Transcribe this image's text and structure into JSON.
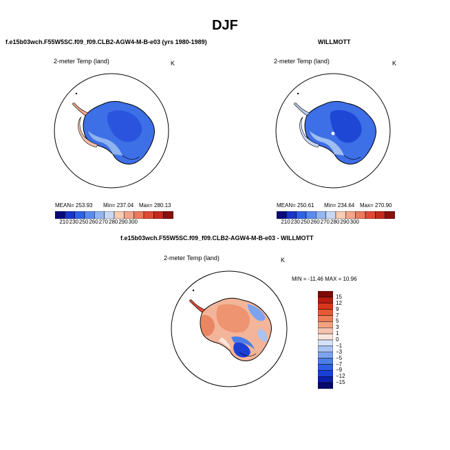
{
  "title": "DJF",
  "panels": [
    {
      "heading": "f.e15b03wch.F55W5SC.f09_f09.CLB2-AGW4-M-B-e03 (yrs 1980-1989)",
      "variable": "2-meter Temp (land)",
      "units": "K",
      "stats": {
        "mean": "MEAN= 253.93",
        "min": "Min= 237.04",
        "max": "Max= 280.13"
      },
      "colorbar_ticks": [
        "210",
        "230",
        "250",
        "260",
        "270",
        "280",
        "290",
        "300"
      ]
    },
    {
      "heading": "WILLMOTT",
      "variable": "2-meter Temp (land)",
      "units": "K",
      "stats": {
        "mean": "MEAN= 250.61",
        "min": "Min= 234.64",
        "max": "Max= 270.90"
      },
      "colorbar_ticks": [
        "210",
        "230",
        "250",
        "260",
        "270",
        "280",
        "290",
        "300"
      ]
    },
    {
      "heading": "f.e15b03wch.F55W5SC.f09_f09.CLB2-AGW4-M-B-e03 - WILLMOTT",
      "variable": "2-meter Temp (land)",
      "units": "K",
      "stats_line": "MIN = -11.46  MAX =  10.96",
      "colorbar_ticks": [
        "15",
        "12",
        "9",
        "7",
        "5",
        "3",
        "1",
        "0",
        "−1",
        "−3",
        "−5",
        "−7",
        "−9",
        "−12",
        "−15"
      ]
    }
  ],
  "chart_data": [
    {
      "type": "heatmap",
      "title": "2-meter Temp (land)",
      "units": "K",
      "projection": "south polar stereographic",
      "mean": 253.93,
      "min": 237.04,
      "max": 280.13,
      "colorbar_levels": [
        210,
        230,
        250,
        260,
        270,
        280,
        290,
        300
      ],
      "colorbar_colors": [
        "#0a0a78",
        "#1b35c8",
        "#2f63e6",
        "#5a8cf0",
        "#93b6f2",
        "#c8d8f4",
        "#f6ccb3",
        "#f3a48a",
        "#ec7a5d",
        "#e04a35",
        "#c42a1e",
        "#8a1010"
      ]
    },
    {
      "type": "heatmap",
      "title": "2-meter Temp (land)",
      "units": "K",
      "projection": "south polar stereographic",
      "mean": 250.61,
      "min": 234.64,
      "max": 270.9,
      "colorbar_levels": [
        210,
        230,
        250,
        260,
        270,
        280,
        290,
        300
      ],
      "colorbar_colors": [
        "#0a0a78",
        "#1b35c8",
        "#2f63e6",
        "#5a8cf0",
        "#93b6f2",
        "#c8d8f4",
        "#f6ccb3",
        "#f3a48a",
        "#ec7a5d",
        "#e04a35",
        "#c42a1e",
        "#8a1010"
      ]
    },
    {
      "type": "heatmap",
      "title": "2-meter Temp (land)",
      "units": "K",
      "projection": "south polar stereographic",
      "min": -11.46,
      "max": 10.96,
      "colorbar_levels": [
        -15,
        -12,
        -9,
        -7,
        -5,
        -3,
        -1,
        0,
        1,
        3,
        5,
        7,
        9,
        12,
        15
      ],
      "colorbar_colors": [
        "#08086e",
        "#0d1fb0",
        "#1a3fd6",
        "#2e5ee6",
        "#4c7ee8",
        "#7da3ee",
        "#a9c3f2",
        "#d4e1f8",
        "#fbe6dc",
        "#f6c4ae",
        "#f2a27f",
        "#ee7e58",
        "#e85a36",
        "#d8361c",
        "#b81a10",
        "#7e0a06"
      ]
    }
  ]
}
